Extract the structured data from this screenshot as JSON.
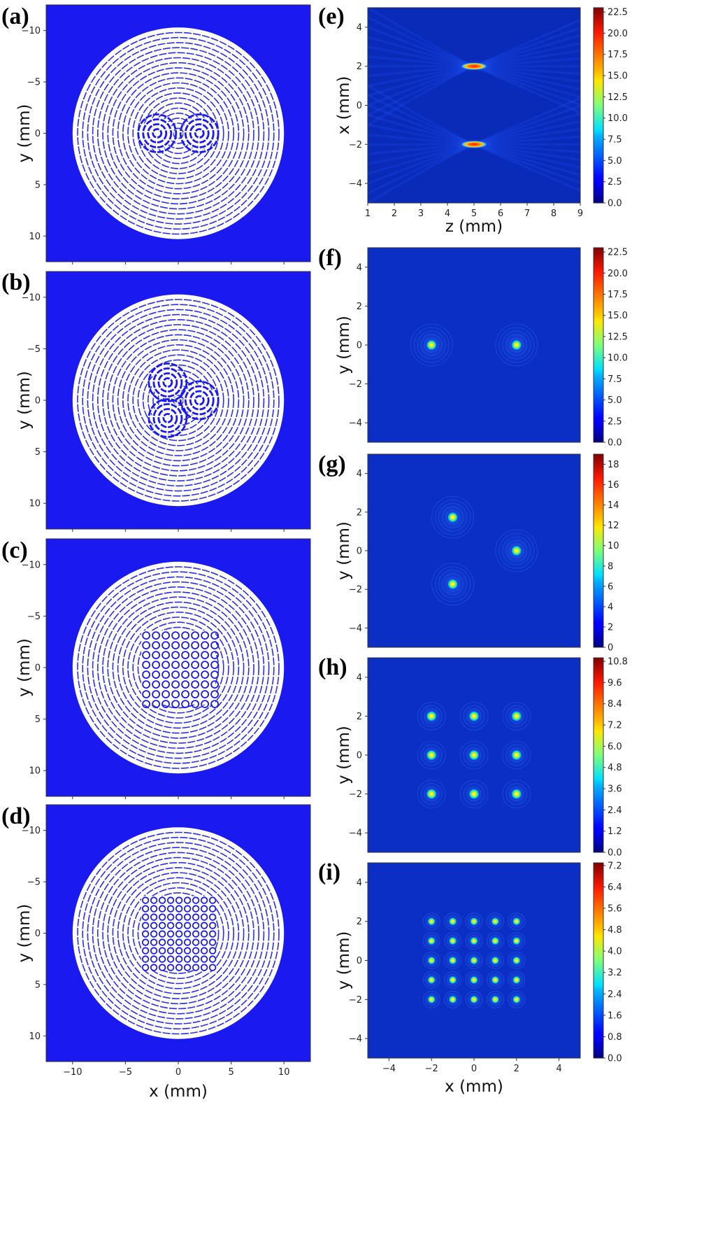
{
  "colors": {
    "mask_background": "#1a1af0",
    "mask_foreground": "#ffffff",
    "field_background": "#0b2fc4",
    "colormap": "jet"
  },
  "chart_data": [
    {
      "panel_label": "(a)",
      "type": "heatmap",
      "content": "binary phase mask, two focal spots",
      "ylabel": "y (mm)",
      "xlabel": "",
      "xlim": [
        -12.5,
        12.5
      ],
      "ylim": [
        -12.5,
        12.5
      ],
      "xticks": [
        -10,
        -5,
        0,
        5,
        10
      ],
      "yticks": [
        -10,
        -5,
        0,
        5,
        10
      ],
      "ytick_labels": [
        "10",
        "5",
        "0",
        "−5",
        "−10"
      ],
      "aperture_radius": 10,
      "foci": [
        {
          "x": -2,
          "y": 0
        },
        {
          "x": 2,
          "y": 0
        }
      ]
    },
    {
      "panel_label": "(b)",
      "type": "heatmap",
      "content": "binary phase mask, three focal spots",
      "ylabel": "y (mm)",
      "xlabel": "",
      "xlim": [
        -12.5,
        12.5
      ],
      "ylim": [
        -12.5,
        12.5
      ],
      "xticks": [
        -10,
        -5,
        0,
        5,
        10
      ],
      "yticks": [
        -10,
        -5,
        0,
        5,
        10
      ],
      "ytick_labels": [
        "10",
        "5",
        "0",
        "−5",
        "−10"
      ],
      "aperture_radius": 10,
      "foci": [
        {
          "x": -1,
          "y": 1.73
        },
        {
          "x": 2,
          "y": 0
        },
        {
          "x": -1,
          "y": -1.73
        }
      ]
    },
    {
      "panel_label": "(c)",
      "type": "heatmap",
      "content": "binary phase mask, 3x3 focal array",
      "ylabel": "y (mm)",
      "xlabel": "",
      "xlim": [
        -12.5,
        12.5
      ],
      "ylim": [
        -12.5,
        12.5
      ],
      "xticks": [
        -10,
        -5,
        0,
        5,
        10
      ],
      "yticks": [
        -10,
        -5,
        0,
        5,
        10
      ],
      "ytick_labels": [
        "10",
        "5",
        "0",
        "−5",
        "−10"
      ],
      "aperture_radius": 10,
      "grid_extent": 3.5
    },
    {
      "panel_label": "(d)",
      "type": "heatmap",
      "content": "binary phase mask, 5x5 focal array",
      "ylabel": "y (mm)",
      "xlabel": "x (mm)",
      "xlim": [
        -12.5,
        12.5
      ],
      "ylim": [
        -12.5,
        12.5
      ],
      "xticks": [
        -10,
        -5,
        0,
        5,
        10
      ],
      "xtick_labels": [
        "−10",
        "−5",
        "0",
        "5",
        "10"
      ],
      "yticks": [
        -10,
        -5,
        0,
        5,
        10
      ],
      "ytick_labels": [
        "10",
        "5",
        "0",
        "−5",
        "−10"
      ],
      "aperture_radius": 10,
      "grid_extent": 3.5
    },
    {
      "panel_label": "(e)",
      "type": "heatmap",
      "content": "intensity in x-z plane",
      "xlabel": "z (mm)",
      "ylabel": "x (mm)",
      "xlim": [
        1,
        9
      ],
      "ylim": [
        -5,
        5
      ],
      "xticks": [
        1,
        2,
        3,
        4,
        5,
        6,
        7,
        8,
        9
      ],
      "xtick_labels": [
        "1",
        "2",
        "3",
        "4",
        "5",
        "6",
        "7",
        "8",
        "9"
      ],
      "yticks": [
        4,
        2,
        0,
        -2,
        -4
      ],
      "ytick_labels": [
        "4",
        "2",
        "0",
        "−2",
        "−4"
      ],
      "foci": [
        {
          "x": 5,
          "y": 2
        },
        {
          "x": 5,
          "y": -2
        }
      ],
      "colorbar": {
        "min": 0.0,
        "max": 23.0,
        "ticks": [
          "0.0",
          "2.5",
          "5.0",
          "7.5",
          "10.0",
          "12.5",
          "15.0",
          "17.5",
          "20.0",
          "22.5"
        ]
      }
    },
    {
      "panel_label": "(f)",
      "type": "heatmap",
      "content": "focal plane intensity, two spots",
      "xlabel": "",
      "ylabel": "y (mm)",
      "xlim": [
        -5,
        5
      ],
      "ylim": [
        -5,
        5
      ],
      "yticks": [
        4,
        2,
        0,
        -2,
        -4
      ],
      "ytick_labels": [
        "4",
        "2",
        "0",
        "−2",
        "−4"
      ],
      "foci": [
        {
          "x": -2,
          "y": 0
        },
        {
          "x": 2,
          "y": 0
        }
      ],
      "colorbar": {
        "min": 0.0,
        "max": 23.0,
        "ticks": [
          "0.0",
          "2.5",
          "5.0",
          "7.5",
          "10.0",
          "12.5",
          "15.0",
          "17.5",
          "20.0",
          "22.5"
        ]
      }
    },
    {
      "panel_label": "(g)",
      "type": "heatmap",
      "content": "focal plane intensity, three spots",
      "xlabel": "",
      "ylabel": "y (mm)",
      "xlim": [
        -5,
        5
      ],
      "ylim": [
        -5,
        5
      ],
      "yticks": [
        4,
        2,
        0,
        -2,
        -4
      ],
      "ytick_labels": [
        "4",
        "2",
        "0",
        "−2",
        "−4"
      ],
      "foci": [
        {
          "x": -1,
          "y": 1.73
        },
        {
          "x": 2,
          "y": 0
        },
        {
          "x": -1,
          "y": -1.73
        }
      ],
      "colorbar": {
        "min": 0,
        "max": 19,
        "ticks": [
          "0",
          "2",
          "4",
          "6",
          "8",
          "10",
          "12",
          "14",
          "16",
          "18"
        ]
      }
    },
    {
      "panel_label": "(h)",
      "type": "heatmap",
      "content": "focal plane intensity, 3x3 spots",
      "xlabel": "",
      "ylabel": "y (mm)",
      "xlim": [
        -5,
        5
      ],
      "ylim": [
        -5,
        5
      ],
      "yticks": [
        4,
        2,
        0,
        -2,
        -4
      ],
      "ytick_labels": [
        "4",
        "2",
        "0",
        "−2",
        "−4"
      ],
      "grid_positions": [
        -2,
        0,
        2
      ],
      "colorbar": {
        "min": 0.0,
        "max": 11.0,
        "ticks": [
          "0.0",
          "1.2",
          "2.4",
          "3.6",
          "4.8",
          "6.0",
          "7.2",
          "8.4",
          "9.6",
          "10.8"
        ]
      }
    },
    {
      "panel_label": "(i)",
      "type": "heatmap",
      "content": "focal plane intensity, 5x5 spots",
      "xlabel": "x (mm)",
      "ylabel": "y (mm)",
      "xlim": [
        -5,
        5
      ],
      "ylim": [
        -5,
        5
      ],
      "xticks": [
        -4,
        -2,
        0,
        2,
        4
      ],
      "xtick_labels": [
        "−4",
        "−2",
        "0",
        "2",
        "4"
      ],
      "yticks": [
        4,
        2,
        0,
        -2,
        -4
      ],
      "ytick_labels": [
        "4",
        "2",
        "0",
        "−2",
        "−4"
      ],
      "grid_positions": [
        -2,
        -1,
        0,
        1,
        2
      ],
      "colorbar": {
        "min": 0.0,
        "max": 7.3,
        "ticks": [
          "0.0",
          "0.8",
          "1.6",
          "2.4",
          "3.2",
          "4.0",
          "4.8",
          "5.6",
          "6.4",
          "7.2"
        ]
      }
    }
  ]
}
